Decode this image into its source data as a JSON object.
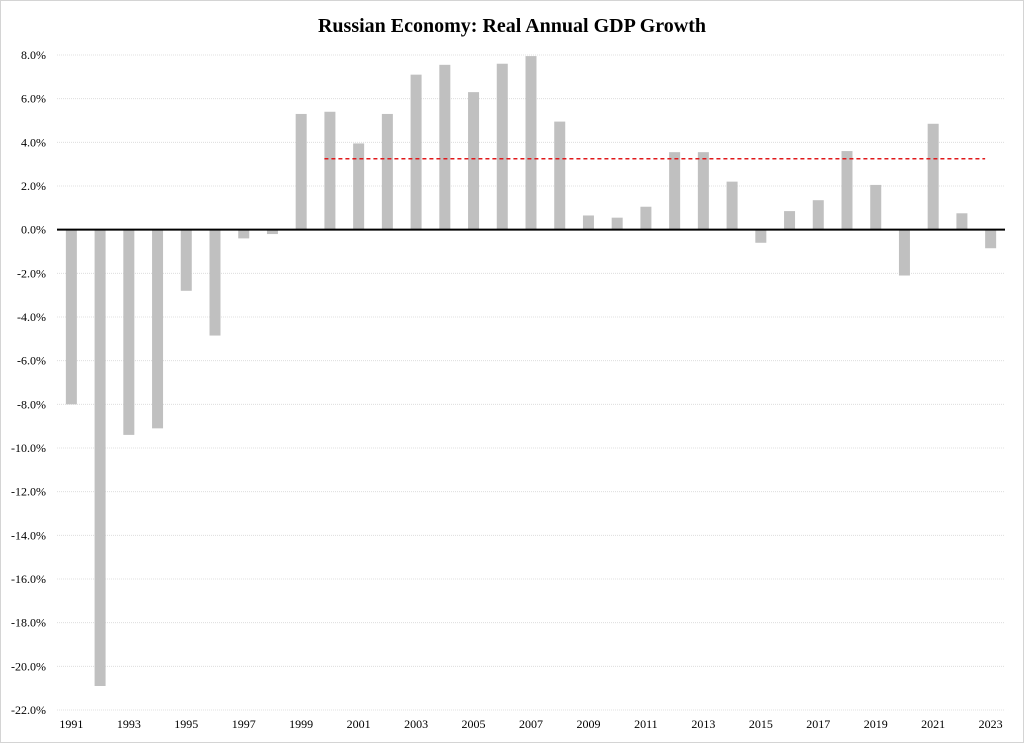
{
  "chart_data": {
    "type": "bar",
    "title": "Russian Economy: Real Annual GDP Growth",
    "xlabel": "",
    "ylabel": "",
    "ylim": [
      -22,
      8
    ],
    "y_tick_step": 2,
    "y_tick_labels": [
      "8.0%",
      "6.0%",
      "4.0%",
      "2.0%",
      "0.0%",
      "-2.0%",
      "-4.0%",
      "-6.0%",
      "-8.0%",
      "-10.0%",
      "-12.0%",
      "-14.0%",
      "-16.0%",
      "-18.0%",
      "-20.0%",
      "-22.0%"
    ],
    "categories": [
      "1991",
      "1992",
      "1993",
      "1994",
      "1995",
      "1996",
      "1997",
      "1998",
      "1999",
      "2000",
      "2001",
      "2002",
      "2003",
      "2004",
      "2005",
      "2006",
      "2007",
      "2008",
      "2009",
      "2010",
      "2011",
      "2012",
      "2013",
      "2014",
      "2015",
      "2016",
      "2017",
      "2018",
      "2019",
      "2020",
      "2021",
      "2022",
      "2023"
    ],
    "x_tick_labels": [
      "1991",
      "1993",
      "1995",
      "1997",
      "1999",
      "2001",
      "2003",
      "2005",
      "2007",
      "2009",
      "2011",
      "2013",
      "2015",
      "2017",
      "2019",
      "2021",
      "2023"
    ],
    "values": [
      -8.0,
      -20.9,
      -9.4,
      -9.1,
      -2.8,
      -4.85,
      -0.4,
      -0.2,
      5.3,
      5.4,
      3.95,
      5.3,
      7.1,
      7.55,
      6.3,
      7.6,
      7.95,
      4.95,
      0.65,
      0.55,
      1.05,
      3.55,
      3.55,
      2.2,
      -0.6,
      0.85,
      1.35,
      3.6,
      2.05,
      -2.1,
      4.85,
      0.75,
      -0.85
    ],
    "reference_line": {
      "value": 3.25,
      "from": "2000",
      "to": "2023",
      "style": "dashed"
    },
    "grid": true,
    "colors": {
      "bar": "#c0c0c0",
      "zero_line": "#000000",
      "reference_line": "#e0191b",
      "grid": "#d9d9d9"
    }
  }
}
